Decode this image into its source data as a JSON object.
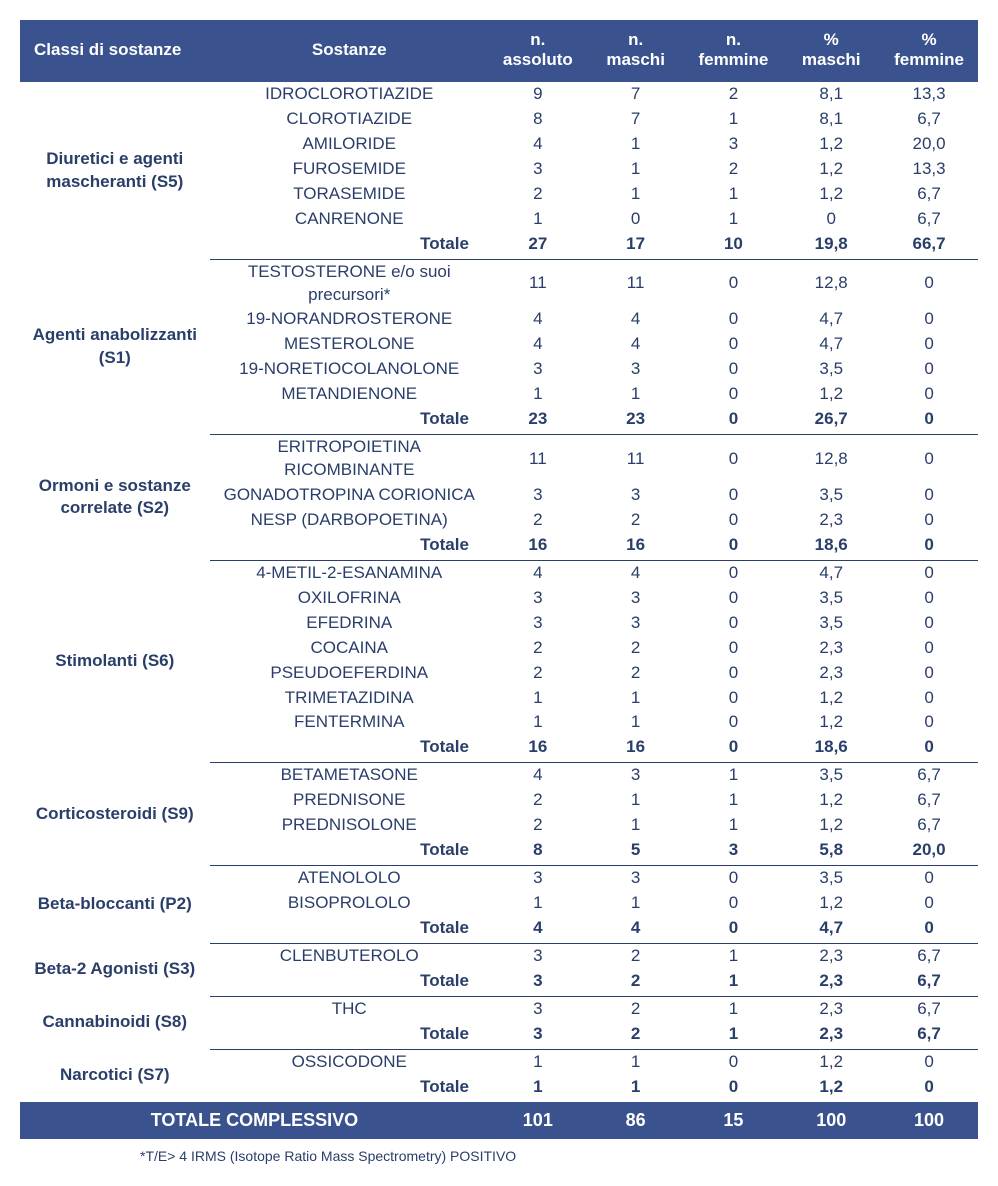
{
  "colors": {
    "header_bg": "#3a538f",
    "header_text": "#ffffff",
    "body_text": "#2a3e6a",
    "rule": "#2a3e6a",
    "page_bg": "#ffffff"
  },
  "typography": {
    "font_family": "Arial",
    "header_fontsize_pt": 13,
    "body_fontsize_pt": 12,
    "footnote_fontsize_pt": 10
  },
  "table": {
    "type": "table",
    "headers": {
      "col1": "Classi di sostanze",
      "col2": "Sostanze",
      "col3_line1": "n.",
      "col3_line2": "assoluto",
      "col4_line1": "n.",
      "col4_line2": "maschi",
      "col5_line1": "n.",
      "col5_line2": "femmine",
      "col6_line1": "%",
      "col6_line2": "maschi",
      "col7_line1": "%",
      "col7_line2": "femmine"
    },
    "groups": [
      {
        "category": "Diuretici e agenti mascheranti (S5)",
        "rows": [
          {
            "sub": "IDROCLOROTIAZIDE",
            "abs": "9",
            "m": "7",
            "f": "2",
            "pm": "8,1",
            "pf": "13,3"
          },
          {
            "sub": "CLOROTIAZIDE",
            "abs": "8",
            "m": "7",
            "f": "1",
            "pm": "8,1",
            "pf": "6,7"
          },
          {
            "sub": "AMILORIDE",
            "abs": "4",
            "m": "1",
            "f": "3",
            "pm": "1,2",
            "pf": "20,0"
          },
          {
            "sub": "FUROSEMIDE",
            "abs": "3",
            "m": "1",
            "f": "2",
            "pm": "1,2",
            "pf": "13,3"
          },
          {
            "sub": "TORASEMIDE",
            "abs": "2",
            "m": "1",
            "f": "1",
            "pm": "1,2",
            "pf": "6,7"
          },
          {
            "sub": "CANRENONE",
            "abs": "1",
            "m": "0",
            "f": "1",
            "pm": "0",
            "pf": "6,7"
          }
        ],
        "total": {
          "label": "Totale",
          "abs": "27",
          "m": "17",
          "f": "10",
          "pm": "19,8",
          "pf": "66,7"
        }
      },
      {
        "category": "Agenti anabolizzanti (S1)",
        "rows": [
          {
            "sub": "TESTOSTERONE e/o suoi precursori*",
            "abs": "11",
            "m": "11",
            "f": "0",
            "pm": "12,8",
            "pf": "0"
          },
          {
            "sub": "19-NORANDROSTERONE",
            "abs": "4",
            "m": "4",
            "f": "0",
            "pm": "4,7",
            "pf": "0"
          },
          {
            "sub": "MESTEROLONE",
            "abs": "4",
            "m": "4",
            "f": "0",
            "pm": "4,7",
            "pf": "0"
          },
          {
            "sub": "19-NORETIOCOLANOLONE",
            "abs": "3",
            "m": "3",
            "f": "0",
            "pm": "3,5",
            "pf": "0"
          },
          {
            "sub": "METANDIENONE",
            "abs": "1",
            "m": "1",
            "f": "0",
            "pm": "1,2",
            "pf": "0"
          }
        ],
        "total": {
          "label": "Totale",
          "abs": "23",
          "m": "23",
          "f": "0",
          "pm": "26,7",
          "pf": "0"
        }
      },
      {
        "category": "Ormoni e sostanze correlate (S2)",
        "rows": [
          {
            "sub": "ERITROPOIETINA RICOMBINANTE",
            "abs": "11",
            "m": "11",
            "f": "0",
            "pm": "12,8",
            "pf": "0"
          },
          {
            "sub": "GONADOTROPINA CORIONICA",
            "abs": "3",
            "m": "3",
            "f": "0",
            "pm": "3,5",
            "pf": "0"
          },
          {
            "sub": "NESP (DARBOPOETINA)",
            "abs": "2",
            "m": "2",
            "f": "0",
            "pm": "2,3",
            "pf": "0"
          }
        ],
        "total": {
          "label": "Totale",
          "abs": "16",
          "m": "16",
          "f": "0",
          "pm": "18,6",
          "pf": "0"
        }
      },
      {
        "category": "Stimolanti (S6)",
        "rows": [
          {
            "sub": "4-METIL-2-ESANAMINA",
            "abs": "4",
            "m": "4",
            "f": "0",
            "pm": "4,7",
            "pf": "0"
          },
          {
            "sub": "OXILOFRINA",
            "abs": "3",
            "m": "3",
            "f": "0",
            "pm": "3,5",
            "pf": "0"
          },
          {
            "sub": "EFEDRINA",
            "abs": "3",
            "m": "3",
            "f": "0",
            "pm": "3,5",
            "pf": "0"
          },
          {
            "sub": "COCAINA",
            "abs": "2",
            "m": "2",
            "f": "0",
            "pm": "2,3",
            "pf": "0"
          },
          {
            "sub": "PSEUDOEFERDINA",
            "abs": "2",
            "m": "2",
            "f": "0",
            "pm": "2,3",
            "pf": "0"
          },
          {
            "sub": "TRIMETAZIDINA",
            "abs": "1",
            "m": "1",
            "f": "0",
            "pm": "1,2",
            "pf": "0"
          },
          {
            "sub": "FENTERMINA",
            "abs": "1",
            "m": "1",
            "f": "0",
            "pm": "1,2",
            "pf": "0"
          }
        ],
        "total": {
          "label": "Totale",
          "abs": "16",
          "m": "16",
          "f": "0",
          "pm": "18,6",
          "pf": "0"
        }
      },
      {
        "category": "Corticosteroidi (S9)",
        "rows": [
          {
            "sub": "BETAMETASONE",
            "abs": "4",
            "m": "3",
            "f": "1",
            "pm": "3,5",
            "pf": "6,7"
          },
          {
            "sub": "PREDNISONE",
            "abs": "2",
            "m": "1",
            "f": "1",
            "pm": "1,2",
            "pf": "6,7"
          },
          {
            "sub": "PREDNISOLONE",
            "abs": "2",
            "m": "1",
            "f": "1",
            "pm": "1,2",
            "pf": "6,7"
          }
        ],
        "total": {
          "label": "Totale",
          "abs": "8",
          "m": "5",
          "f": "3",
          "pm": "5,8",
          "pf": "20,0"
        }
      },
      {
        "category": "Beta-bloccanti (P2)",
        "rows": [
          {
            "sub": "ATENOLOLO",
            "abs": "3",
            "m": "3",
            "f": "0",
            "pm": "3,5",
            "pf": "0"
          },
          {
            "sub": "BISOPROLOLO",
            "abs": "1",
            "m": "1",
            "f": "0",
            "pm": "1,2",
            "pf": "0"
          }
        ],
        "total": {
          "label": "Totale",
          "abs": "4",
          "m": "4",
          "f": "0",
          "pm": "4,7",
          "pf": "0"
        }
      },
      {
        "category": "Beta-2 Agonisti (S3)",
        "rows": [
          {
            "sub": "CLENBUTEROLO",
            "abs": "3",
            "m": "2",
            "f": "1",
            "pm": "2,3",
            "pf": "6,7"
          }
        ],
        "total": {
          "label": "Totale",
          "abs": "3",
          "m": "2",
          "f": "1",
          "pm": "2,3",
          "pf": "6,7"
        }
      },
      {
        "category": "Cannabinoidi (S8)",
        "rows": [
          {
            "sub": "THC",
            "abs": "3",
            "m": "2",
            "f": "1",
            "pm": "2,3",
            "pf": "6,7"
          }
        ],
        "total": {
          "label": "Totale",
          "abs": "3",
          "m": "2",
          "f": "1",
          "pm": "2,3",
          "pf": "6,7"
        }
      },
      {
        "category": "Narcotici (S7)",
        "rows": [
          {
            "sub": "OSSICODONE",
            "abs": "1",
            "m": "1",
            "f": "0",
            "pm": "1,2",
            "pf": "0"
          }
        ],
        "total": {
          "label": "Totale",
          "abs": "1",
          "m": "1",
          "f": "0",
          "pm": "1,2",
          "pf": "0"
        }
      }
    ],
    "grand_total": {
      "label": "TOTALE COMPLESSIVO",
      "abs": "101",
      "m": "86",
      "f": "15",
      "pm": "100",
      "pf": "100"
    },
    "footnote": "*T/E> 4 IRMS (Isotope Ratio Mass Spectrometry) POSITIVO"
  }
}
